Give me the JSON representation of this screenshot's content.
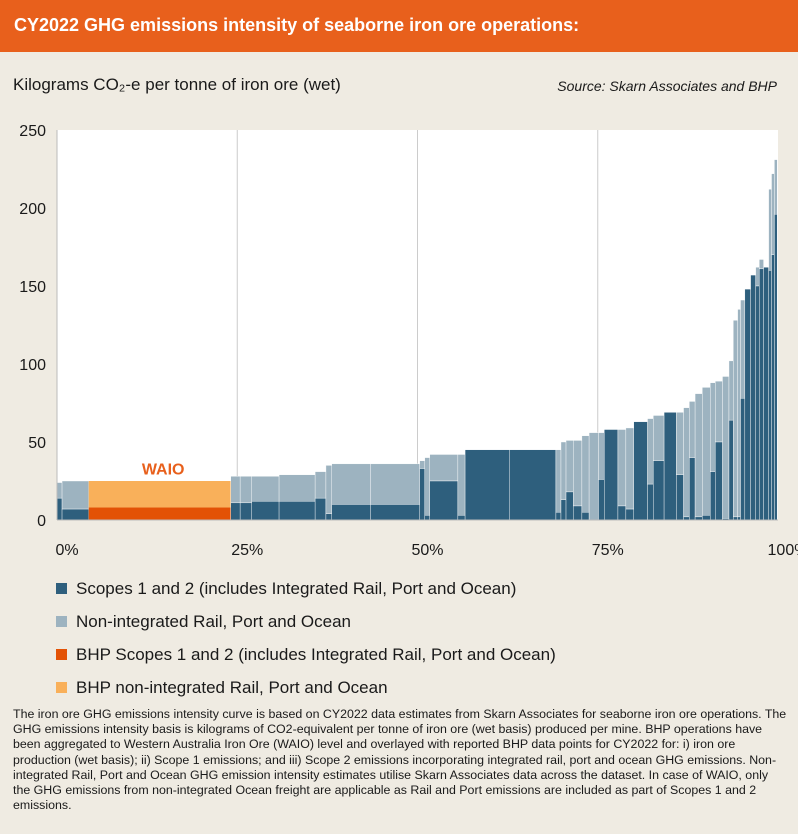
{
  "header": {
    "title": "CY2022 GHG emissions intensity of seaborne iron ore operations:"
  },
  "colors": {
    "scope12": "#2e5f7d",
    "nonintegrated": "#9db3c0",
    "bhp_scope12": "#e35205",
    "bhp_nonintegrated": "#f9b05a",
    "grid": "#cccccc",
    "header": "#e8601c"
  },
  "chart_data": {
    "type": "bar",
    "title": "CY2022 GHG emissions intensity of seaborne iron ore operations:",
    "ylabel": "Kilograms CO₂-e per tonne of iron ore (wet)",
    "source": "Source: Skarn Associates and BHP",
    "xlim": [
      0,
      100
    ],
    "ylim": [
      0,
      250
    ],
    "yticks": [
      "0",
      "50",
      "100",
      "150",
      "200",
      "250"
    ],
    "xticks": [
      "0%",
      "25%",
      "50%",
      "75%",
      "100%"
    ],
    "xtick_values": [
      0,
      25,
      50,
      75,
      100
    ],
    "grid": "vertical",
    "annotation": {
      "label": "WAIO",
      "x": 15,
      "y": 33
    },
    "series_names": {
      "scope12": "Scopes 1 and 2 (includes Integrated Rail, Port and Ocean)",
      "nonintegrated": "Non-integrated Rail, Port and Ocean",
      "bhp_scope12": "BHP Scopes 1 and 2 (includes Integrated Rail, Port and Ocean)",
      "bhp_nonintegrated": "BHP non-integrated Rail, Port and Ocean"
    },
    "operations": [
      [
        0,
        0.7,
        14,
        10,
        false
      ],
      [
        0.7,
        4.4,
        7,
        18,
        false
      ],
      [
        4.4,
        24.1,
        8,
        17,
        true
      ],
      [
        24.1,
        25.4,
        11,
        17,
        false
      ],
      [
        25.4,
        27.0,
        11,
        17,
        false
      ],
      [
        27.0,
        30.8,
        12,
        16,
        false
      ],
      [
        30.8,
        35.8,
        12,
        17,
        false
      ],
      [
        35.8,
        37.3,
        14,
        17,
        false
      ],
      [
        37.3,
        38.1,
        4,
        31,
        false
      ],
      [
        38.1,
        43.5,
        10,
        26,
        false
      ],
      [
        43.5,
        50.3,
        10,
        26,
        false
      ],
      [
        50.3,
        51.0,
        33,
        5,
        false
      ],
      [
        51.0,
        51.7,
        3,
        37,
        false
      ],
      [
        51.7,
        55.6,
        25,
        17,
        false
      ],
      [
        55.6,
        56.6,
        3,
        39,
        false
      ],
      [
        56.6,
        62.8,
        45,
        0,
        false
      ],
      [
        62.8,
        69.2,
        45,
        0,
        false
      ],
      [
        69.2,
        69.9,
        5,
        40,
        false
      ],
      [
        69.9,
        70.6,
        13,
        37,
        false
      ],
      [
        70.6,
        71.6,
        18,
        33,
        false
      ],
      [
        71.6,
        72.8,
        9,
        42,
        false
      ],
      [
        72.8,
        73.8,
        5,
        49,
        false
      ],
      [
        73.8,
        75.1,
        0,
        56,
        false
      ],
      [
        75.1,
        75.9,
        26,
        30,
        false
      ],
      [
        75.9,
        77.8,
        58,
        0,
        false
      ],
      [
        77.8,
        78.9,
        9,
        49,
        false
      ],
      [
        78.9,
        80.0,
        7,
        52,
        false
      ],
      [
        80.0,
        81.9,
        63,
        0,
        false
      ],
      [
        81.9,
        82.7,
        23,
        42,
        false
      ],
      [
        82.7,
        84.2,
        38,
        29,
        false
      ],
      [
        84.2,
        85.9,
        69,
        0,
        false
      ],
      [
        85.9,
        86.9,
        29,
        40,
        false
      ],
      [
        86.9,
        87.7,
        2,
        70,
        false
      ],
      [
        87.7,
        88.5,
        40,
        36,
        false
      ],
      [
        88.5,
        89.5,
        2,
        79,
        false
      ],
      [
        89.5,
        90.6,
        3,
        82,
        false
      ],
      [
        90.6,
        91.3,
        31,
        57,
        false
      ],
      [
        91.3,
        92.3,
        50,
        39,
        false
      ],
      [
        92.3,
        93.2,
        1,
        91,
        false
      ],
      [
        93.2,
        93.8,
        64,
        38,
        false
      ],
      [
        93.8,
        94.4,
        2,
        126,
        false
      ],
      [
        94.4,
        94.8,
        2,
        133,
        false
      ],
      [
        94.8,
        95.4,
        78,
        63,
        false
      ],
      [
        95.4,
        96.2,
        148,
        0,
        false
      ],
      [
        96.2,
        96.9,
        157,
        0,
        false
      ],
      [
        96.9,
        97.4,
        150,
        12,
        false
      ],
      [
        97.4,
        98.0,
        161,
        6,
        false
      ],
      [
        98.0,
        98.7,
        162,
        0,
        false
      ],
      [
        98.7,
        99.1,
        160,
        52,
        false
      ],
      [
        99.1,
        99.5,
        170,
        52,
        false
      ],
      [
        99.5,
        99.9,
        196,
        35,
        false
      ]
    ]
  },
  "legend": {
    "items": [
      {
        "key": "scope12",
        "label": "Scopes 1 and 2 (includes Integrated Rail, Port and Ocean)"
      },
      {
        "key": "nonintegrated",
        "label": "Non-integrated Rail, Port and Ocean"
      },
      {
        "key": "bhp_scope12",
        "label": "BHP Scopes 1 and 2 (includes Integrated Rail, Port and Ocean)"
      },
      {
        "key": "bhp_nonintegrated",
        "label": "BHP non-integrated Rail, Port and Ocean"
      }
    ]
  },
  "footnote": "The iron ore GHG emissions intensity curve is based on CY2022 data estimates from Skarn Associates for seaborne iron ore operations. The GHG emissions intensity basis is kilograms of CO2-equivalent per tonne of iron ore (wet basis) produced per mine. BHP operations have been aggregated to Western Australia Iron Ore (WAIO) level and overlayed with reported BHP data points for CY2022 for: i) iron ore production (wet basis); ii) Scope 1 emissions; and iii) Scope 2 emissions incorporating integrated rail, port and ocean GHG emissions. Non-integrated Rail, Port and Ocean GHG emission intensity estimates utilise Skarn Associates data across the dataset. In case of WAIO, only the GHG emissions from non-integrated Ocean freight are applicable as Rail and Port emissions are included as part of Scopes 1 and 2 emissions."
}
